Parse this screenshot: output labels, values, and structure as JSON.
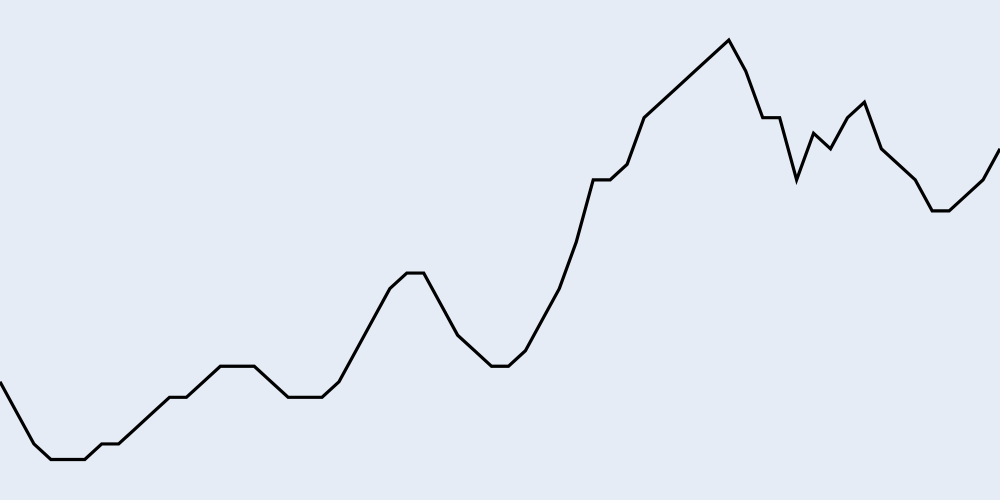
{
  "colors": {
    "background": "#e5ecf6",
    "line": "#000000"
  },
  "chart_data": {
    "type": "line",
    "title": "",
    "xlabel": "",
    "ylabel": "",
    "grid": false,
    "legend": "none",
    "xlim": [
      0,
      59
    ],
    "ylim": [
      0,
      29
    ],
    "x": [
      0,
      1,
      2,
      3,
      4,
      5,
      6,
      7,
      8,
      9,
      10,
      11,
      12,
      13,
      14,
      15,
      16,
      17,
      18,
      19,
      20,
      21,
      22,
      23,
      24,
      25,
      26,
      27,
      28,
      29,
      30,
      31,
      32,
      33,
      34,
      35,
      36,
      37,
      38,
      39,
      40,
      41,
      42,
      43,
      44,
      45,
      46,
      47,
      48,
      49,
      50,
      51,
      52,
      53,
      54,
      55,
      56,
      57,
      58,
      59
    ],
    "series": [
      {
        "name": "",
        "values": [
          6,
          4,
          2,
          1,
          1,
          1,
          2,
          2,
          3,
          4,
          5,
          5,
          6,
          7,
          7,
          7,
          6,
          5,
          5,
          5,
          6,
          8,
          10,
          12,
          13,
          13,
          11,
          9,
          8,
          7,
          7,
          8,
          10,
          12,
          15,
          19,
          19,
          20,
          23,
          24,
          25,
          26,
          27,
          28,
          26,
          23,
          23,
          19,
          22,
          21,
          23,
          24,
          21,
          20,
          19,
          17,
          17,
          18,
          19,
          21
        ]
      }
    ]
  }
}
